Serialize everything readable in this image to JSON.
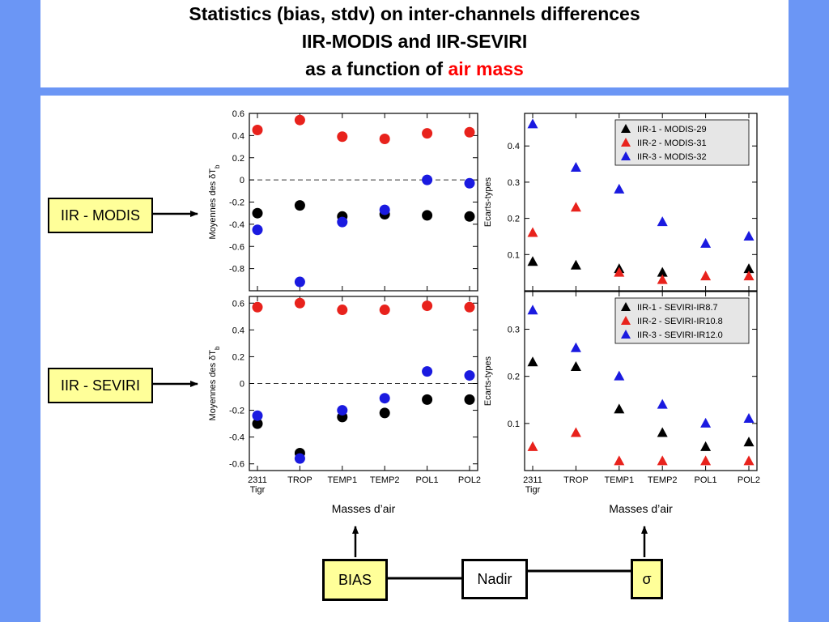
{
  "title": {
    "line1": "Statistics (bias, stdv) on inter-channels differences",
    "line2": "IIR-MODIS and IIR-SEVIRI",
    "line3_prefix": "as a function of ",
    "line3_accent": "air mass"
  },
  "colors": {
    "background_blue": "#6b96f5",
    "black": "#000000",
    "red": "#e8221c",
    "blue": "#1a1ae0",
    "callout_fill": "#ffff99",
    "accent_text": "#ff0000"
  },
  "callouts": {
    "modis_label": "IIR - MODIS",
    "seviri_label": "IIR - SEVIRI",
    "bias_label": "BIAS",
    "nadir_label": "Nadir",
    "sigma_label": "σ"
  },
  "chart_data": [
    {
      "id": "bias-modis",
      "type": "scatter",
      "marker": "circle",
      "categories": [
        "2311\nTigr",
        "TROP",
        "TEMP1",
        "TEMP2",
        "POL1",
        "POL2"
      ],
      "ylabel": "Moyennes des δT",
      "ylabel_sub": "b",
      "xlabel": "",
      "ylim": [
        -1.0,
        0.6
      ],
      "yticks": [
        0.6,
        0.4,
        0.2,
        0,
        -0.2,
        -0.4,
        -0.6,
        -0.8
      ],
      "show_xticklabels": false,
      "zero_line": true,
      "series": [
        {
          "color": "#000000",
          "values": [
            -0.3,
            -0.23,
            -0.33,
            -0.31,
            -0.32,
            -0.33
          ]
        },
        {
          "color": "#e8221c",
          "values": [
            0.45,
            0.54,
            0.39,
            0.37,
            0.42,
            0.43
          ]
        },
        {
          "color": "#1a1ae0",
          "values": [
            -0.45,
            -0.92,
            -0.38,
            -0.27,
            0.0,
            -0.03
          ]
        }
      ]
    },
    {
      "id": "bias-seviri",
      "type": "scatter",
      "marker": "circle",
      "categories": [
        "2311\nTigr",
        "TROP",
        "TEMP1",
        "TEMP2",
        "POL1",
        "POL2"
      ],
      "ylabel": "Moyennes des δT",
      "ylabel_sub": "b",
      "xlabel": "Masses d’air",
      "ylim": [
        -0.65,
        0.65
      ],
      "yticks": [
        0.6,
        0.4,
        0.2,
        0,
        -0.2,
        -0.4,
        -0.6
      ],
      "show_xticklabels": true,
      "zero_line": true,
      "series": [
        {
          "color": "#000000",
          "values": [
            -0.3,
            -0.52,
            -0.25,
            -0.22,
            -0.12,
            -0.12
          ]
        },
        {
          "color": "#e8221c",
          "values": [
            0.57,
            0.6,
            0.55,
            0.55,
            0.58,
            0.57
          ]
        },
        {
          "color": "#1a1ae0",
          "values": [
            -0.24,
            -0.56,
            -0.2,
            -0.11,
            0.09,
            0.06
          ]
        }
      ]
    },
    {
      "id": "stdv-modis",
      "type": "scatter",
      "marker": "triangle",
      "categories": [
        "2311\nTigr",
        "TROP",
        "TEMP1",
        "TEMP2",
        "POL1",
        "POL2"
      ],
      "ylabel": "Ecarts-types",
      "xlabel": "",
      "ylim": [
        0.0,
        0.49
      ],
      "yticks": [
        0.4,
        0.3,
        0.2,
        0.1
      ],
      "show_xticklabels": false,
      "zero_line": false,
      "legend_position": "top-right",
      "series": [
        {
          "name": "IIR-1 - MODIS-29",
          "color": "#000000",
          "values": [
            0.08,
            0.07,
            0.06,
            0.05,
            null,
            0.06
          ]
        },
        {
          "name": "IIR-2 - MODIS-31",
          "color": "#e8221c",
          "values": [
            0.16,
            0.23,
            0.05,
            0.03,
            0.04,
            0.04
          ]
        },
        {
          "name": "IIR-3 - MODIS-32",
          "color": "#1a1ae0",
          "values": [
            0.46,
            0.34,
            0.28,
            0.19,
            0.13,
            0.15
          ]
        }
      ]
    },
    {
      "id": "stdv-seviri",
      "type": "scatter",
      "marker": "triangle",
      "categories": [
        "2311\nTigr",
        "TROP",
        "TEMP1",
        "TEMP2",
        "POL1",
        "POL2"
      ],
      "ylabel": "Ecarts-types",
      "xlabel": "Masses d’air",
      "ylim": [
        0.0,
        0.38
      ],
      "yticks": [
        0.3,
        0.2,
        0.1
      ],
      "show_xticklabels": true,
      "zero_line": false,
      "legend_position": "top-right",
      "series": [
        {
          "name": "IIR-1 - SEVIRI-IR8.7",
          "color": "#000000",
          "values": [
            0.23,
            0.22,
            0.13,
            0.08,
            0.05,
            0.06
          ]
        },
        {
          "name": "IIR-2 - SEVIRI-IR10.8",
          "color": "#e8221c",
          "values": [
            0.05,
            0.08,
            0.02,
            0.02,
            0.02,
            0.02
          ]
        },
        {
          "name": "IIR-3 - SEVIRI-IR12.0",
          "color": "#1a1ae0",
          "values": [
            0.34,
            0.26,
            0.2,
            0.14,
            0.1,
            0.11
          ]
        }
      ]
    }
  ]
}
